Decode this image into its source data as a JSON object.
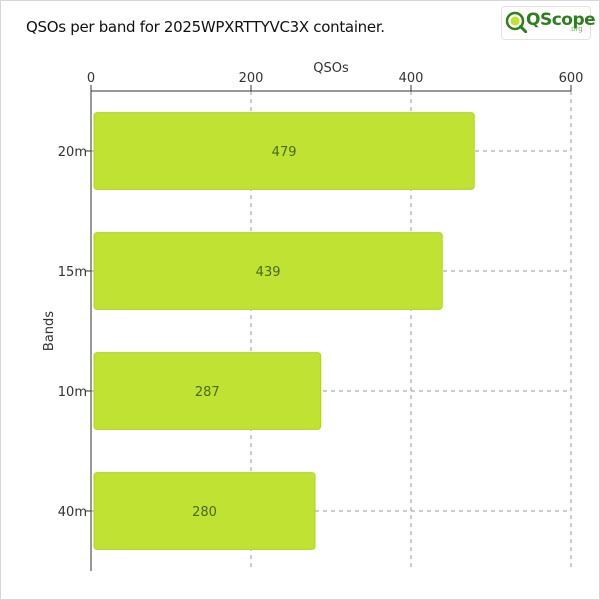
{
  "title": "QSOs per band for 2025WPXRTTYVC3X container.",
  "logo": {
    "text": "QScope",
    "sub": ".org",
    "icon": "magnifier-q-icon"
  },
  "colors": {
    "bar": "#c0e232",
    "bar_stroke": "#b0d22a",
    "grid": "#9a9a9a",
    "logo_green": "#2e7d1e"
  },
  "chart_data": {
    "type": "bar",
    "orientation": "horizontal",
    "title": "QSOs per band for 2025WPXRTTYVC3X container.",
    "xlabel": "QSOs",
    "ylabel": "Bands",
    "x_axis_position": "top",
    "xlim": [
      0,
      600
    ],
    "xticks": [
      0,
      200,
      400,
      600
    ],
    "grid": true,
    "categories": [
      "20m",
      "15m",
      "10m",
      "40m"
    ],
    "values": [
      479,
      439,
      287,
      280
    ]
  }
}
